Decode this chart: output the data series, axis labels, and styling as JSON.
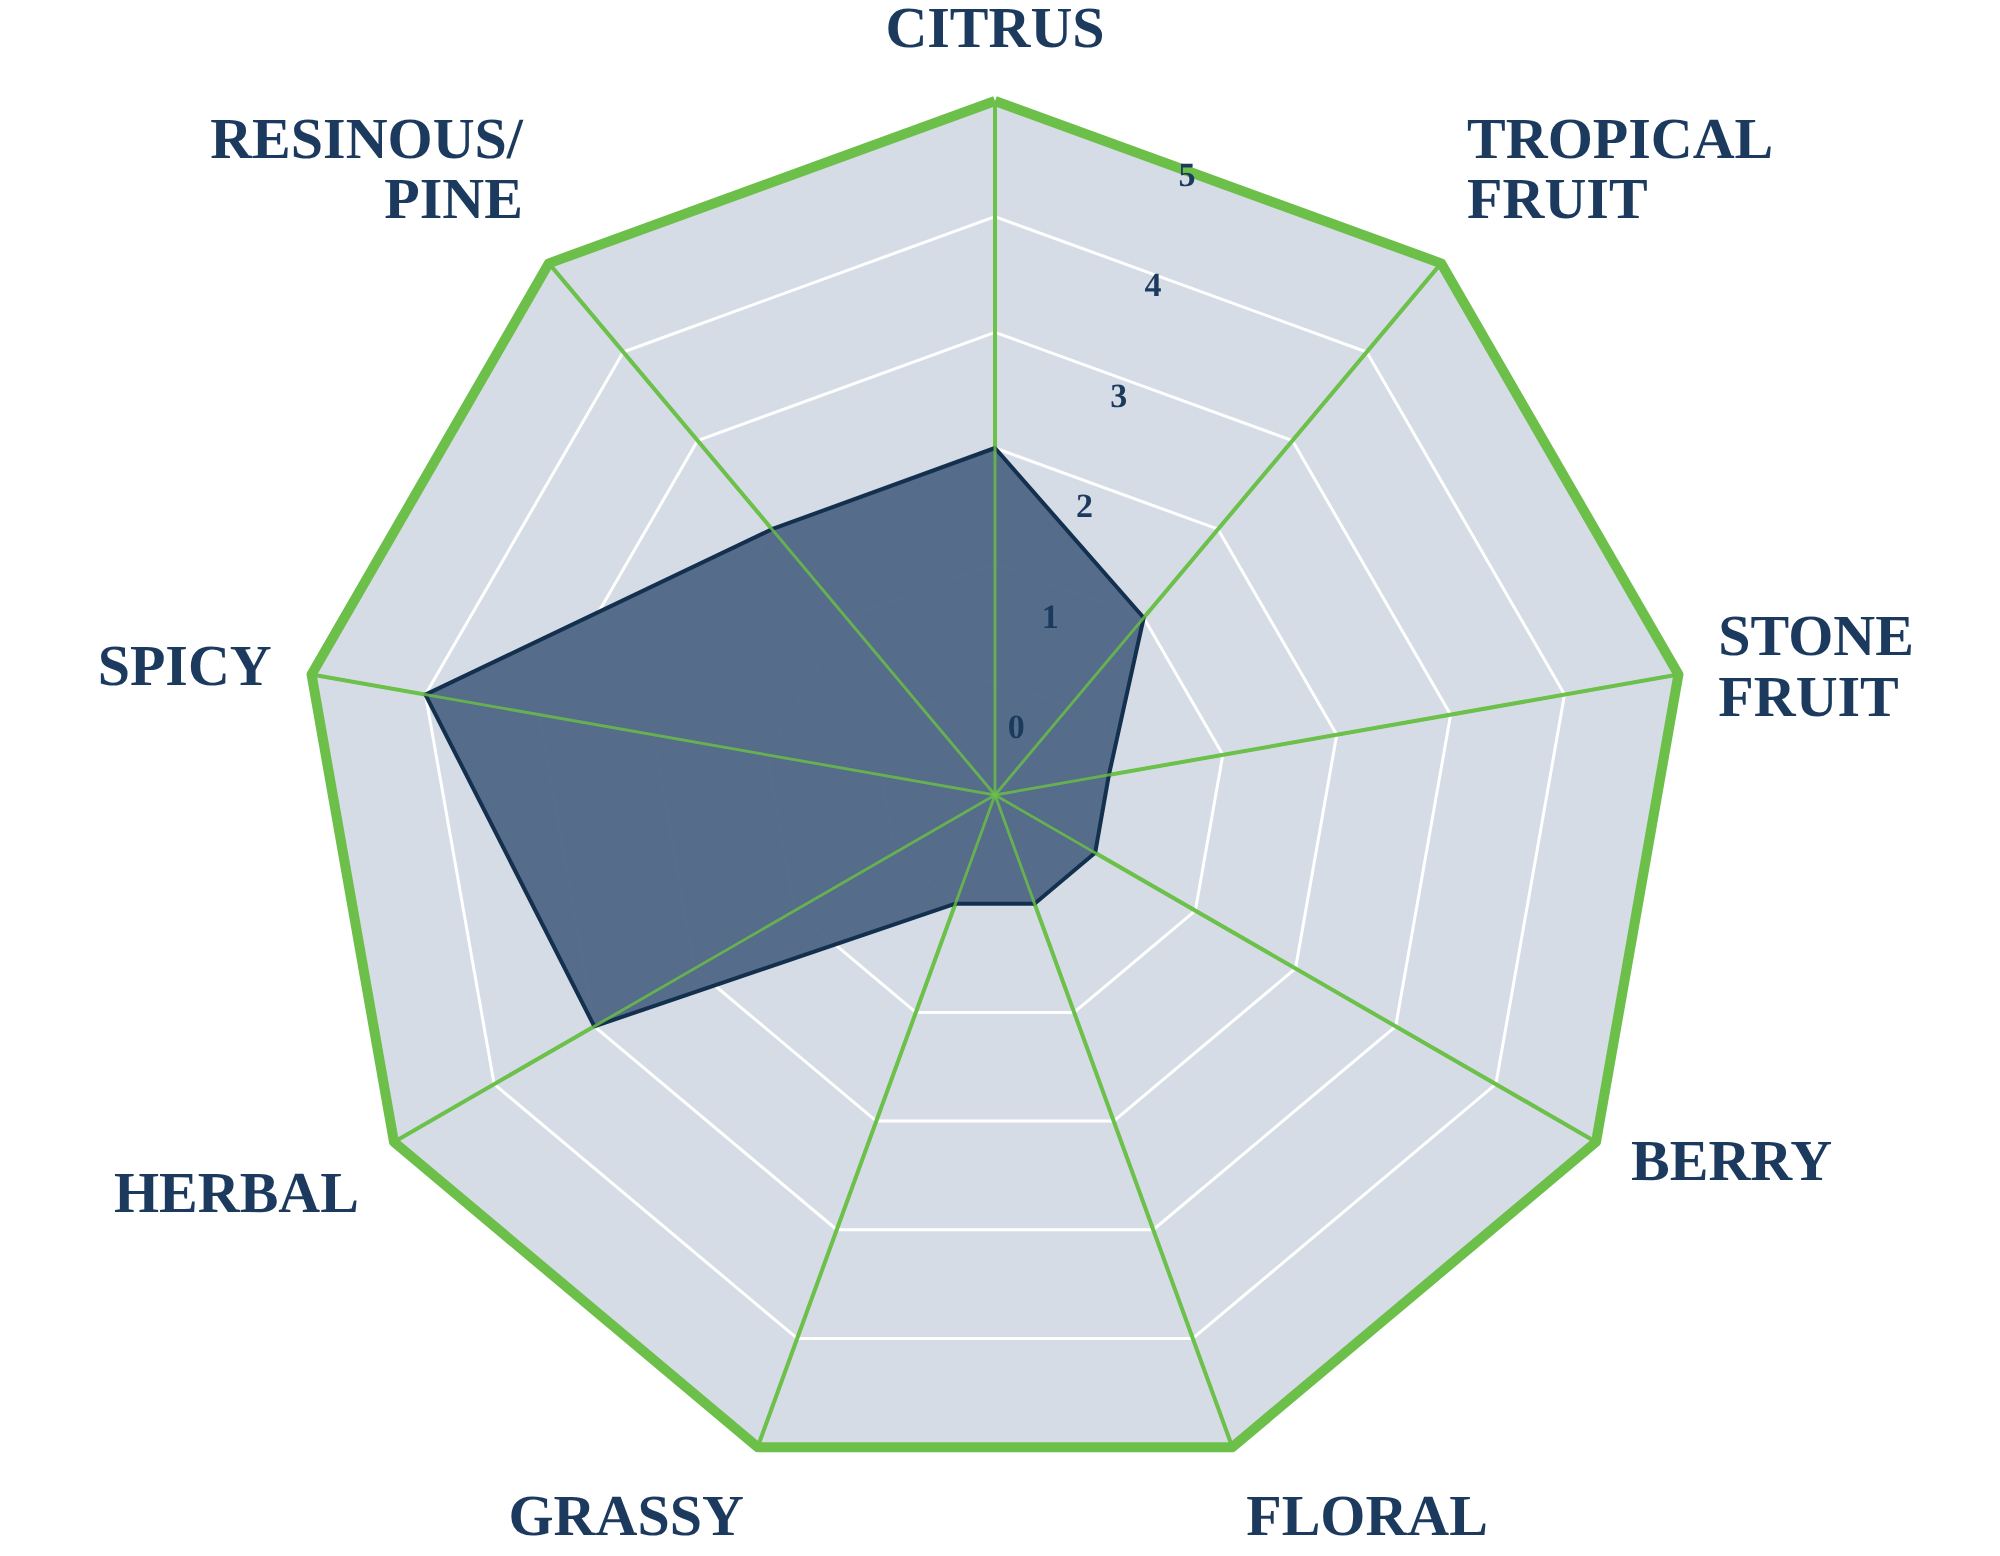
{
  "chart_data": {
    "type": "radar",
    "categories": [
      "CITRUS",
      "TROPICAL\nFRUIT",
      "STONE\nFRUIT",
      "BERRY",
      "FLORAL",
      "GRASSY",
      "HERBAL",
      "SPICY",
      "RESINOUS/\nPINE"
    ],
    "series": [
      {
        "color": "#4f6586",
        "values": [
          2,
          1,
          0,
          0,
          0,
          0,
          3,
          4,
          2
        ]
      }
    ],
    "ylim": [
      -1,
      5
    ],
    "yticks": [
      0,
      1,
      2,
      3,
      4,
      5
    ],
    "grid": true
  }
}
